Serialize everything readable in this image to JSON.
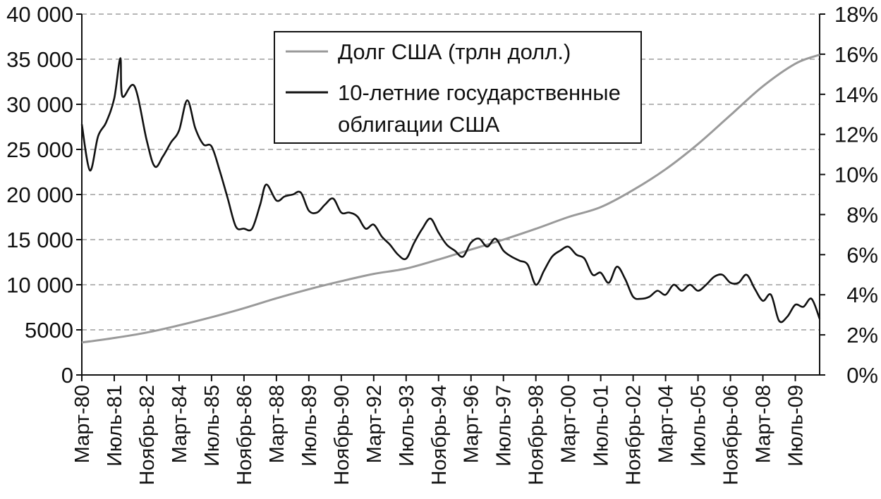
{
  "chart_data": {
    "type": "line",
    "title": "",
    "x": [
      "Март-80",
      "Июль-81",
      "Ноябрь-82",
      "Март-84",
      "Июль-85",
      "Ноябрь-86",
      "Март-88",
      "Июль-89",
      "Ноябрь-90",
      "Март-92",
      "Июль-93",
      "Ноябрь-94",
      "Март-96",
      "Июль-97",
      "Ноябрь-98",
      "Март-00",
      "Июль-01",
      "Ноябрь-02",
      "Март-04",
      "Июль-05",
      "Ноябрь-06",
      "Март-08",
      "Июль-09"
    ],
    "y_left": {
      "ylim": [
        0,
        40000
      ],
      "ticks": [
        "0",
        "5000",
        "10 000",
        "15 000",
        "20 000",
        "25 000",
        "30 000",
        "35 000",
        "40 000"
      ]
    },
    "y_right": {
      "ylim": [
        0,
        18
      ],
      "ticks": [
        "0%",
        "2%",
        "4%",
        "6%",
        "8%",
        "10%",
        "12%",
        "14%",
        "16%",
        "18%"
      ]
    },
    "grid": "horizontal-dashed",
    "legend_position": "top-center",
    "series": [
      {
        "name": "Долг США (трлн долл.)",
        "axis": "left",
        "color": "#9a9a9a",
        "points": [
          [
            "Март-80",
            3600
          ],
          [
            "Июль-81",
            4100
          ],
          [
            "Ноябрь-82",
            4700
          ],
          [
            "Март-84",
            5500
          ],
          [
            "Июль-85",
            6400
          ],
          [
            "Ноябрь-86",
            7400
          ],
          [
            "Март-88",
            8500
          ],
          [
            "Июль-89",
            9500
          ],
          [
            "Ноябрь-90",
            10400
          ],
          [
            "Март-92",
            11200
          ],
          [
            "Июль-93",
            11800
          ],
          [
            "Ноябрь-94",
            12800
          ],
          [
            "Март-96",
            13900
          ],
          [
            "Июль-97",
            15000
          ],
          [
            "Ноябрь-98",
            16200
          ],
          [
            "Март-00",
            17500
          ],
          [
            "Июль-01",
            18600
          ],
          [
            "Ноябрь-02",
            20500
          ],
          [
            "Март-04",
            22800
          ],
          [
            "Июль-05",
            25600
          ],
          [
            "Ноябрь-06",
            28800
          ],
          [
            "Март-08",
            32000
          ],
          [
            "Июль-09",
            34500
          ],
          [
            "Июль-10",
            35500
          ]
        ]
      },
      {
        "name": "10-летние государственные облигации США",
        "axis": "right",
        "color": "#111111",
        "points": [
          [
            "Март-80",
            12.5
          ],
          [
            "Июль-80",
            10.2
          ],
          [
            "Ноябрь-80",
            11.9
          ],
          [
            "Март-81",
            12.6
          ],
          [
            "Июль-81",
            13.8
          ],
          [
            "Октябрь-81",
            15.8
          ],
          [
            "Ноябрь-81",
            13.9
          ],
          [
            "Май-82",
            14.4
          ],
          [
            "Ноябрь-82",
            11.7
          ],
          [
            "Март-83",
            10.4
          ],
          [
            "Июль-83",
            10.9
          ],
          [
            "Ноябрь-83",
            11.6
          ],
          [
            "Март-84",
            12.2
          ],
          [
            "Июль-84",
            13.7
          ],
          [
            "Ноябрь-84",
            12.3
          ],
          [
            "Март-85",
            11.5
          ],
          [
            "Июль-85",
            11.4
          ],
          [
            "Ноябрь-85",
            10.2
          ],
          [
            "Март-86",
            8.8
          ],
          [
            "Июль-86",
            7.4
          ],
          [
            "Ноябрь-86",
            7.3
          ],
          [
            "Март-87",
            7.3
          ],
          [
            "Июль-87",
            8.5
          ],
          [
            "Октябрь-87",
            9.5
          ],
          [
            "Март-88",
            8.7
          ],
          [
            "Июль-88",
            8.9
          ],
          [
            "Ноябрь-88",
            9.0
          ],
          [
            "Март-89",
            9.1
          ],
          [
            "Июль-89",
            8.2
          ],
          [
            "Ноябрь-89",
            8.1
          ],
          [
            "Март-90",
            8.5
          ],
          [
            "Июль-90",
            8.8
          ],
          [
            "Ноябрь-90",
            8.1
          ],
          [
            "Март-91",
            8.1
          ],
          [
            "Июль-91",
            7.9
          ],
          [
            "Ноябрь-91",
            7.3
          ],
          [
            "Март-92",
            7.5
          ],
          [
            "Июль-92",
            6.9
          ],
          [
            "Ноябрь-92",
            6.5
          ],
          [
            "Март-93",
            6.0
          ],
          [
            "Июль-93",
            5.8
          ],
          [
            "Ноябрь-93",
            6.6
          ],
          [
            "Март-94",
            7.3
          ],
          [
            "Июль-94",
            7.8
          ],
          [
            "Ноябрь-94",
            7.1
          ],
          [
            "Март-95",
            6.5
          ],
          [
            "Июль-95",
            6.2
          ],
          [
            "Ноябрь-95",
            5.9
          ],
          [
            "Март-96",
            6.6
          ],
          [
            "Июль-96",
            6.8
          ],
          [
            "Ноябрь-96",
            6.4
          ],
          [
            "Март-97",
            6.8
          ],
          [
            "Июль-97",
            6.2
          ],
          [
            "Ноябрь-97",
            5.9
          ],
          [
            "Март-98",
            5.7
          ],
          [
            "Июль-98",
            5.5
          ],
          [
            "Ноябрь-98",
            4.5
          ],
          [
            "Март-99",
            5.2
          ],
          [
            "Июль-99",
            5.9
          ],
          [
            "Ноябрь-99",
            6.2
          ],
          [
            "Март-00",
            6.4
          ],
          [
            "Июль-00",
            6.0
          ],
          [
            "Ноябрь-00",
            5.8
          ],
          [
            "Март-01",
            5.0
          ],
          [
            "Июль-01",
            5.1
          ],
          [
            "Ноябрь-01",
            4.6
          ],
          [
            "Март-02",
            5.4
          ],
          [
            "Июль-02",
            4.8
          ],
          [
            "Ноябрь-02",
            3.9
          ],
          [
            "Март-03",
            3.8
          ],
          [
            "Июль-03",
            3.9
          ],
          [
            "Ноябрь-03",
            4.2
          ],
          [
            "Март-04",
            4.0
          ],
          [
            "Июль-04",
            4.5
          ],
          [
            "Ноябрь-04",
            4.2
          ],
          [
            "Март-05",
            4.5
          ],
          [
            "Июль-05",
            4.2
          ],
          [
            "Ноябрь-05",
            4.5
          ],
          [
            "Март-06",
            4.9
          ],
          [
            "Июль-06",
            5.0
          ],
          [
            "Ноябрь-06",
            4.6
          ],
          [
            "Март-07",
            4.6
          ],
          [
            "Июль-07",
            5.0
          ],
          [
            "Ноябрь-07",
            4.3
          ],
          [
            "Март-08",
            3.7
          ],
          [
            "Июль-08",
            4.0
          ],
          [
            "Ноябрь-08",
            2.7
          ],
          [
            "Март-09",
            2.9
          ],
          [
            "Июль-09",
            3.5
          ],
          [
            "Ноябрь-09",
            3.4
          ],
          [
            "Март-10",
            3.8
          ],
          [
            "Июль-10",
            2.8
          ]
        ]
      }
    ]
  },
  "legend": {
    "debt_label": "Долг США (трлн долл.)",
    "bonds_label_line1": "10-летние государственные",
    "bonds_label_line2": "облигации США"
  }
}
